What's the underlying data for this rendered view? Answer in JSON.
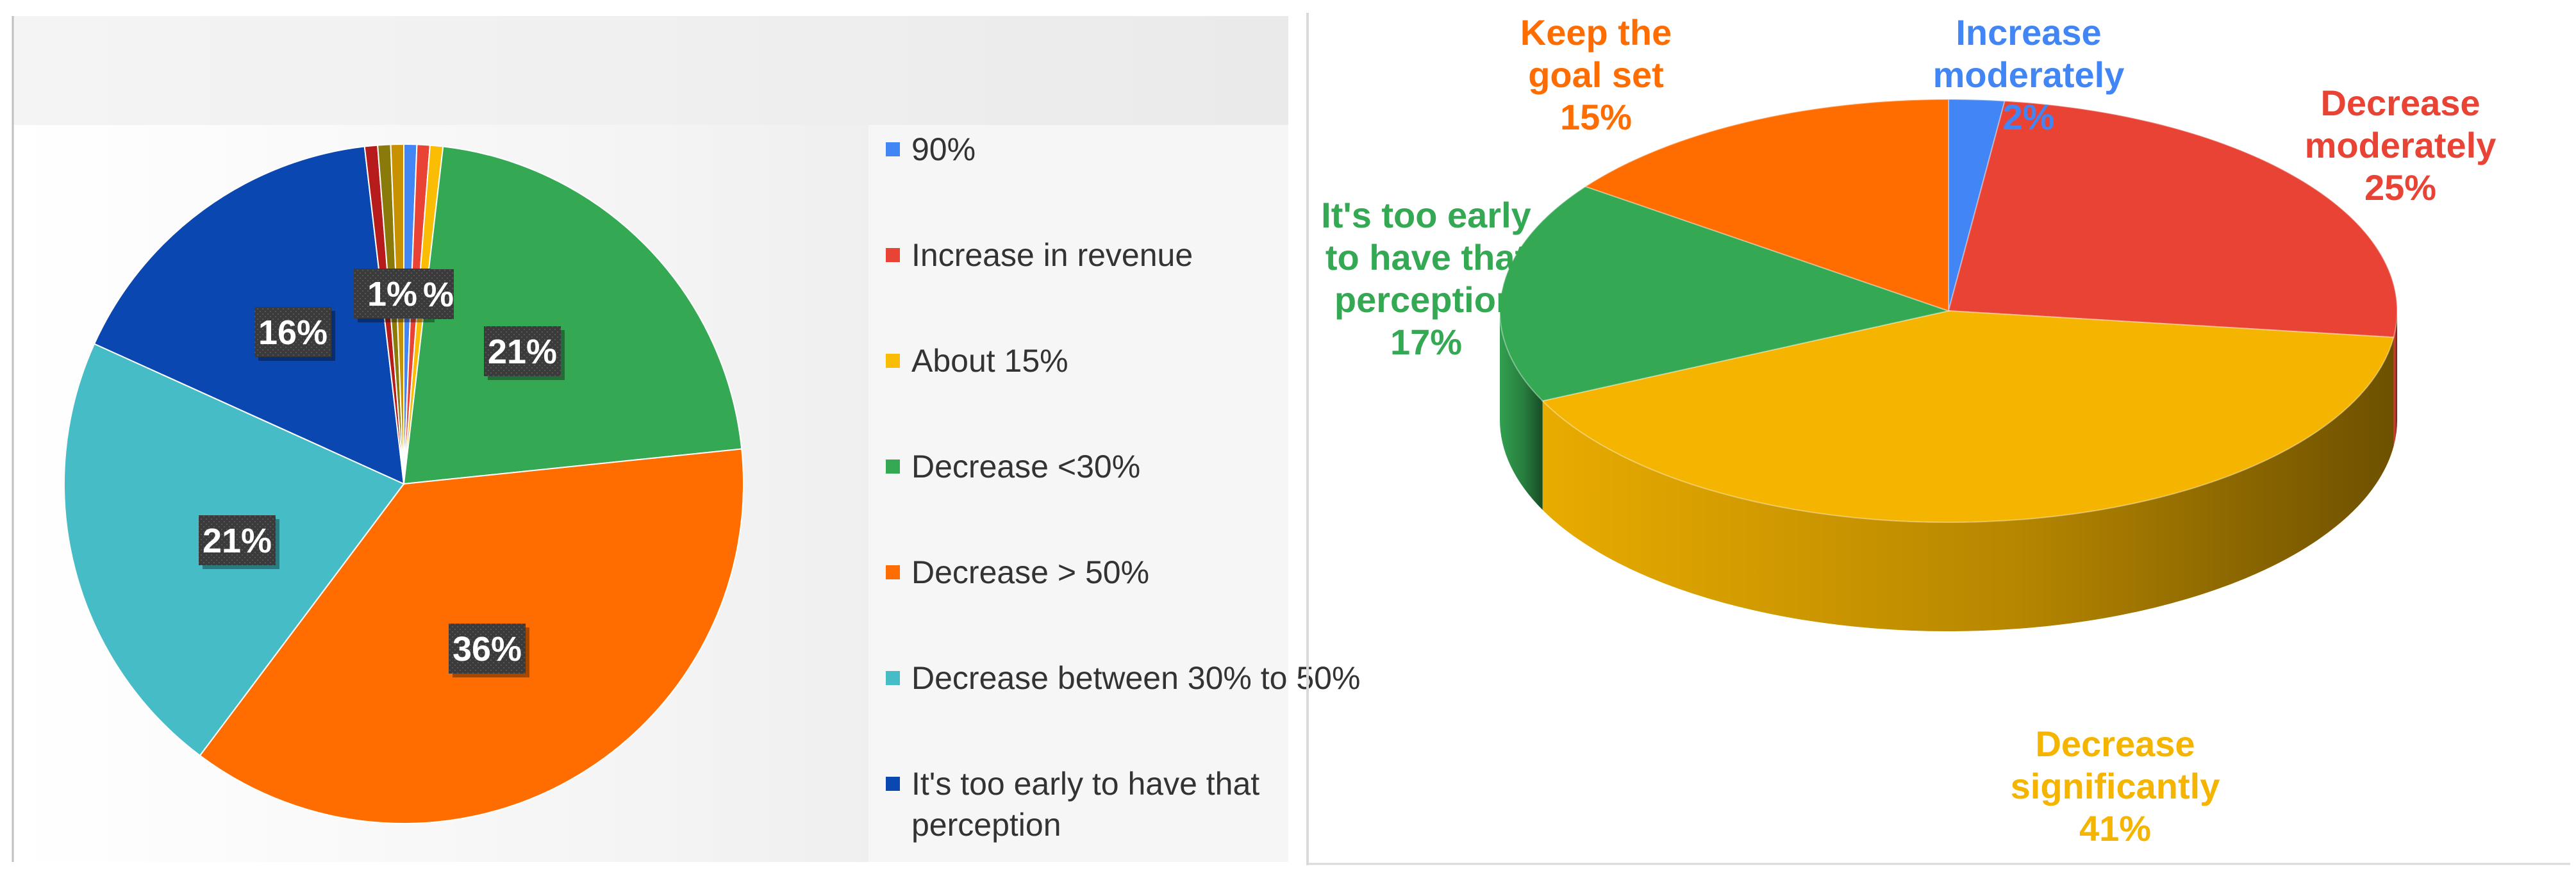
{
  "chart_data": [
    {
      "type": "pie",
      "title": "",
      "series": [
        {
          "name": "90%",
          "value": 0.6,
          "color": "#4285f4"
        },
        {
          "name": "Increase in revenue",
          "value": 0.6,
          "color": "#e84335"
        },
        {
          "name": "About 15%",
          "value": 0.6,
          "color": "#fbbc04"
        },
        {
          "name": "Decrease <30%",
          "value": 21,
          "color": "#34a853"
        },
        {
          "name": "Decrease > 50%",
          "value": 36,
          "color": "#ff6d00"
        },
        {
          "name": "Decrease between 30% to 50%",
          "value": 21,
          "color": "#46bdc6"
        },
        {
          "name": "It's too early to have that perception",
          "value": 16,
          "color": "#0b47b0"
        },
        {
          "name": "",
          "value": 0.6,
          "color": "#b71c1c"
        },
        {
          "name": "",
          "value": 0.6,
          "color": "#8a7a0a"
        },
        {
          "name": "",
          "value": 0.6,
          "color": "#c79100"
        }
      ],
      "data_labels": [
        "21%",
        "36%",
        "21%",
        "16%",
        "1%"
      ],
      "legend": {
        "position": "right",
        "entries": [
          "90%",
          "Increase in revenue",
          "About 15%",
          "Decrease <30%",
          "Decrease > 50%",
          "Decrease between 30% to 50%",
          "It's too early to have that perception"
        ]
      }
    },
    {
      "type": "pie",
      "title": "",
      "style": "3d",
      "series": [
        {
          "name": "Increase moderately",
          "value": 2,
          "label": "2%",
          "color": "#4285f4"
        },
        {
          "name": "Decrease moderately",
          "value": 25,
          "label": "25%",
          "color": "#e84335"
        },
        {
          "name": "Decrease significantly",
          "value": 41,
          "label": "41%",
          "color": "#f4b400"
        },
        {
          "name": "It's too early to have that perception",
          "value": 17,
          "label": "17%",
          "color": "#34a853"
        },
        {
          "name": "Keep the goal set",
          "value": 15,
          "label": "15%",
          "color": "#ff6d00"
        }
      ],
      "labels": [
        {
          "lines": [
            "Increase",
            "moderately",
            "2%"
          ],
          "color": "#4285f4"
        },
        {
          "lines": [
            "Decrease",
            "moderately",
            "25%"
          ],
          "color": "#e84335"
        },
        {
          "lines": [
            "Decrease",
            "significantly",
            "41%"
          ],
          "color": "#f4b400"
        },
        {
          "lines": [
            "It's too early",
            "to have that",
            "perception",
            "17%"
          ],
          "color": "#34a853"
        },
        {
          "lines": [
            "Keep the",
            "goal set",
            "15%"
          ],
          "color": "#ff6d00"
        }
      ]
    }
  ]
}
